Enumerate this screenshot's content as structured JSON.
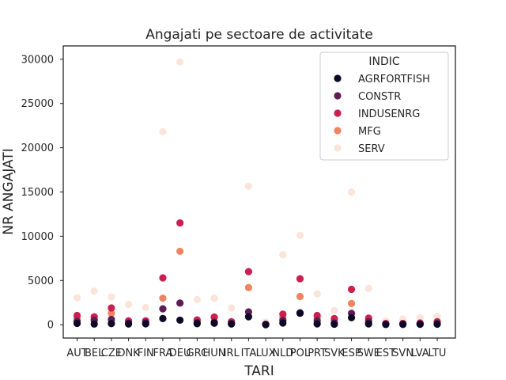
{
  "chart_data": {
    "type": "scatter",
    "title": "Angajati pe sectoare de activitate",
    "xlabel": "TARI",
    "ylabel": "NR ANGAJATI",
    "categories": [
      "AUT",
      "BEL",
      "CZE",
      "DNK",
      "FIN",
      "FRA",
      "DEU",
      "GRC",
      "HUN",
      "IRL",
      "ITA",
      "LUX",
      "NLD",
      "POL",
      "PRT",
      "SVK",
      "ESP",
      "SWE",
      "EST",
      "SVN",
      "LVA",
      "LTU"
    ],
    "ylim": [
      -1500,
      31500
    ],
    "yticks": [
      0,
      5000,
      10000,
      15000,
      20000,
      25000,
      30000
    ],
    "grid": false,
    "legend": {
      "title": "INDIC",
      "placement": "top-right"
    },
    "series": [
      {
        "name": "AGRFORTFISH",
        "color": "#0c0826",
        "values": [
          150,
          80,
          130,
          90,
          110,
          700,
          520,
          120,
          180,
          90,
          900,
          10,
          200,
          1300,
          100,
          70,
          800,
          100,
          30,
          40,
          50,
          60
        ]
      },
      {
        "name": "CONSTR",
        "color": "#5f1d56",
        "values": [
          400,
          500,
          600,
          200,
          250,
          1800,
          2450,
          250,
          300,
          150,
          1450,
          40,
          500,
          1350,
          450,
          200,
          1300,
          350,
          50,
          80,
          90,
          150
        ]
      },
      {
        "name": "INDUSENRG",
        "color": "#cb1f4f",
        "values": [
          1050,
          900,
          1900,
          450,
          450,
          5300,
          11500,
          550,
          850,
          350,
          6000,
          60,
          1200,
          5200,
          1050,
          700,
          4000,
          750,
          150,
          150,
          200,
          350
        ]
      },
      {
        "name": "MFG",
        "color": "#ee8560",
        "values": [
          750,
          650,
          1300,
          350,
          350,
          3000,
          8300,
          350,
          900,
          300,
          4200,
          50,
          800,
          3200,
          700,
          500,
          2400,
          550,
          120,
          120,
          150,
          300
        ]
      },
      {
        "name": "SERV",
        "color": "#fbe5da",
        "values": [
          3050,
          3800,
          3150,
          2300,
          1950,
          21800,
          29700,
          2850,
          3000,
          1900,
          15650,
          300,
          7900,
          10100,
          3500,
          1600,
          15000,
          4100,
          450,
          650,
          800,
          950
        ]
      }
    ]
  }
}
